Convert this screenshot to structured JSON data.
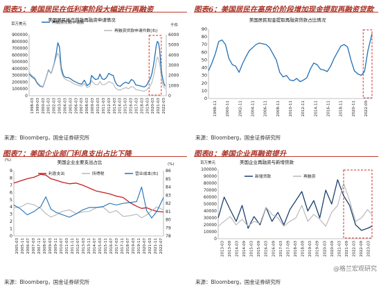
{
  "headers": [
    "图表5：美国居民在低利率阶段大幅进行再融资",
    "图表6：美国居民在高房价阶段增加现金提取再融资贷款",
    "图表7：美国企业部门利息支出占比下降",
    "图表8：美国企业再融资提升"
  ],
  "sources": [
    "来源：Bloomberg，国金证券研究所",
    "来源：Bloomberg，国金证券研究所",
    "来源：Bloomberg，国金证券研究所",
    "来源：Bloomberg，国金证券研究所"
  ],
  "watermark": "@格兰宏观研究",
  "colors": {
    "header": "#a93226",
    "blue": "#1f6fb5",
    "navy": "#1b3f6e",
    "red": "#c41e1e",
    "gray": "#b5b5b5",
    "dashbox": "#d62728"
  },
  "chart_data": [
    {
      "type": "line",
      "title": "美国居民地产贷款再融资申请情况",
      "left_unit": "百万美元",
      "right_unit": "千件",
      "ylim": [
        0,
        900000
      ],
      "y_ticks": [
        0,
        100000,
        200000,
        300000,
        400000,
        500000,
        600000,
        700000,
        800000,
        900000
      ],
      "y2lim": [
        0,
        6000
      ],
      "y2_ticks": [
        0,
        1000,
        2000,
        3000,
        4000,
        5000,
        6000
      ],
      "x_ticks": [
        "1998-03",
        "1999-03",
        "2000-03",
        "2001-03",
        "2002-03",
        "2003-03",
        "2004-03",
        "2005-03",
        "2006-03",
        "2007-03",
        "2008-03",
        "2009-03",
        "2010-03",
        "2011-03",
        "2012-03",
        "2013-03",
        "2014-03",
        "2015-03",
        "2016-03",
        "2017-03",
        "2018-03",
        "2019-03",
        "2020-03",
        "2021-03",
        "2022-03"
      ],
      "x_range": [
        1998.0,
        2022.8
      ],
      "highlight": [
        2019.7,
        2021.9
      ],
      "series": [
        {
          "name": "再融资贷款申请额",
          "axis": "left",
          "color": "#1f6fb5",
          "x": [
            1998.0,
            1998.5,
            1999.0,
            1999.5,
            2000.0,
            2000.5,
            2001.0,
            2001.5,
            2002.0,
            2002.5,
            2002.9,
            2003.2,
            2003.5,
            2003.8,
            2004.2,
            2004.6,
            2005.0,
            2005.5,
            2006.0,
            2006.5,
            2007.0,
            2007.5,
            2008.0,
            2008.5,
            2009.0,
            2009.3,
            2009.6,
            2010.0,
            2010.5,
            2010.8,
            2011.2,
            2011.6,
            2012.0,
            2012.4,
            2012.8,
            2013.2,
            2013.6,
            2014.0,
            2014.5,
            2015.0,
            2015.5,
            2016.0,
            2016.5,
            2016.9,
            2017.3,
            2017.8,
            2018.3,
            2018.8,
            2019.2,
            2019.6,
            2019.9,
            2020.2,
            2020.5,
            2020.8,
            2021.0,
            2021.2,
            2021.4,
            2021.6,
            2021.8,
            2022.0,
            2022.3,
            2022.6
          ],
          "values": [
            320000,
            280000,
            250000,
            180000,
            140000,
            130000,
            250000,
            380000,
            330000,
            460000,
            620000,
            780000,
            720000,
            420000,
            300000,
            270000,
            270000,
            250000,
            220000,
            200000,
            180000,
            170000,
            230000,
            150000,
            180000,
            300000,
            270000,
            240000,
            250000,
            320000,
            250000,
            240000,
            270000,
            330000,
            310000,
            300000,
            200000,
            150000,
            140000,
            180000,
            200000,
            180000,
            240000,
            220000,
            160000,
            150000,
            140000,
            130000,
            150000,
            210000,
            250000,
            320000,
            450000,
            620000,
            740000,
            800000,
            780000,
            680000,
            480000,
            320000,
            200000,
            140000
          ]
        },
        {
          "name": "再融资贷款申请件数(右)",
          "axis": "right",
          "color": "#b5b5b5",
          "x": [
            1998.0,
            1998.5,
            1999.0,
            1999.5,
            2000.0,
            2000.5,
            2001.0,
            2001.5,
            2002.0,
            2002.5,
            2002.9,
            2003.2,
            2003.5,
            2003.8,
            2004.2,
            2004.6,
            2005.0,
            2005.5,
            2006.0,
            2006.5,
            2007.0,
            2007.5,
            2008.0,
            2008.5,
            2009.0,
            2009.3,
            2009.6,
            2010.0,
            2010.5,
            2010.8,
            2011.2,
            2011.6,
            2012.0,
            2012.4,
            2012.8,
            2013.2,
            2013.6,
            2014.0,
            2014.5,
            2015.0,
            2015.5,
            2016.0,
            2016.5,
            2016.9,
            2017.3,
            2017.8,
            2018.3,
            2018.8,
            2019.2,
            2019.6,
            2019.9,
            2020.2,
            2020.5,
            2020.8,
            2021.0,
            2021.2,
            2021.4,
            2021.6,
            2021.8,
            2022.0,
            2022.3,
            2022.6
          ],
          "values": [
            2300,
            2000,
            1800,
            1300,
            1000,
            900,
            1700,
            2600,
            2200,
            3000,
            3800,
            4200,
            3700,
            2400,
            1800,
            1600,
            1500,
            1400,
            1200,
            1100,
            1000,
            950,
            1200,
            800,
            950,
            1500,
            1300,
            1100,
            1100,
            1400,
            1100,
            1100,
            1200,
            1400,
            1300,
            1200,
            800,
            600,
            550,
            700,
            800,
            700,
            900,
            850,
            600,
            550,
            500,
            450,
            550,
            800,
            950,
            1300,
            1900,
            2700,
            3400,
            3800,
            3600,
            3200,
            2300,
            1500,
            900,
            700
          ]
        }
      ]
    },
    {
      "type": "line",
      "title": "美国居民现金提取再融资贷款占比情况",
      "ylim": [
        0,
        90
      ],
      "y_ticks": [
        0,
        10,
        20,
        30,
        40,
        50,
        60,
        70,
        80,
        90
      ],
      "x_ticks": [
        "1998-11",
        "2000-11",
        "2002-11",
        "2004-11",
        "2006-11",
        "2008-11",
        "2010-11",
        "2012-11",
        "2014-11",
        "2016-11",
        "2018-11",
        "2020-11",
        "2022-09"
      ],
      "x_range": [
        1998.8,
        2022.9
      ],
      "highlight": [
        2021.6,
        2022.9
      ],
      "series": [
        {
          "name": "现金提取再融资贷款占比",
          "color": "#1f6fb5",
          "x": [
            1998.8,
            1999.3,
            1999.8,
            2000.3,
            2000.8,
            2001.3,
            2001.8,
            2002.3,
            2002.8,
            2003.3,
            2003.8,
            2004.3,
            2004.8,
            2005.3,
            2005.8,
            2006.3,
            2006.8,
            2007.3,
            2007.8,
            2008.3,
            2008.8,
            2009.3,
            2009.8,
            2010.3,
            2010.8,
            2011.3,
            2011.8,
            2012.3,
            2012.8,
            2013.3,
            2013.8,
            2014.3,
            2014.8,
            2015.3,
            2015.8,
            2016.3,
            2016.8,
            2017.3,
            2017.8,
            2018.3,
            2018.8,
            2019.3,
            2019.8,
            2020.3,
            2020.8,
            2021.3,
            2021.8,
            2022.3,
            2022.9
          ],
          "values": [
            36,
            46,
            58,
            74,
            76,
            70,
            52,
            44,
            42,
            34,
            45,
            54,
            62,
            66,
            70,
            72,
            71,
            70,
            66,
            58,
            50,
            34,
            28,
            30,
            24,
            23,
            26,
            22,
            24,
            27,
            38,
            46,
            44,
            38,
            37,
            35,
            42,
            52,
            60,
            68,
            70,
            67,
            50,
            36,
            32,
            30,
            35,
            62,
            84
          ]
        }
      ]
    },
    {
      "type": "line",
      "title": "美国企业主要支出占比",
      "left_unit": "(%)",
      "right_unit": "(%)",
      "ylim": [
        0,
        9
      ],
      "y_ticks": [
        0,
        1,
        2,
        3,
        4,
        5,
        6,
        7,
        8,
        9
      ],
      "y2lim": [
        78,
        86
      ],
      "y2_ticks": [
        78,
        79,
        80,
        81,
        82,
        83,
        84,
        85,
        86
      ],
      "x_ticks": [
        "2005-03",
        "2005-11",
        "2006-07",
        "2007-03",
        "2007-11",
        "2008-07",
        "2009-03",
        "2009-11",
        "2010-07",
        "2011-03",
        "2011-11",
        "2012-07",
        "2013-03",
        "2013-11",
        "2014-07",
        "2015-03",
        "2015-11",
        "2016-07",
        "2017-03",
        "2017-11",
        "2018-07",
        "2019-03",
        "2019-11",
        "2020-07",
        "2021-03",
        "2021-11",
        "2022-07"
      ],
      "x_range": [
        2005.0,
        2022.8
      ],
      "series": [
        {
          "name": "利息支出",
          "axis": "left",
          "color": "#c41e1e",
          "x": [
            2005.0,
            2005.8,
            2006.6,
            2007.4,
            2008.2,
            2008.8,
            2009.4,
            2010.0,
            2010.8,
            2011.6,
            2012.4,
            2013.2,
            2014.0,
            2014.8,
            2015.6,
            2016.4,
            2017.2,
            2018.0,
            2018.8,
            2019.6,
            2020.2,
            2020.8,
            2021.4,
            2022.0,
            2022.8
          ],
          "values": [
            7.3,
            7.6,
            7.9,
            8.1,
            8.5,
            8.4,
            7.9,
            7.7,
            7.4,
            7.2,
            7.3,
            7.0,
            6.6,
            6.2,
            6.0,
            5.8,
            5.5,
            5.3,
            4.6,
            4.1,
            3.8,
            3.9,
            3.6,
            3.4,
            3.3
          ]
        },
        {
          "name": "所得税",
          "axis": "left",
          "color": "#b5b5b5",
          "x": [
            2005.0,
            2005.8,
            2006.6,
            2007.4,
            2008.2,
            2008.8,
            2009.4,
            2010.0,
            2010.8,
            2011.6,
            2012.4,
            2013.2,
            2014.0,
            2014.8,
            2015.6,
            2016.4,
            2017.2,
            2018.0,
            2018.8,
            2019.6,
            2020.2,
            2020.8,
            2021.4,
            2022.0,
            2022.8
          ],
          "values": [
            3.9,
            4.0,
            4.5,
            4.3,
            3.8,
            3.1,
            2.6,
            2.9,
            3.4,
            3.6,
            3.1,
            3.3,
            3.4,
            3.9,
            4.0,
            3.2,
            3.5,
            2.7,
            2.8,
            3.0,
            2.5,
            2.9,
            3.5,
            4.0,
            3.6
          ]
        },
        {
          "name": "营业成本(右)",
          "axis": "right",
          "color": "#1f6fb5",
          "x": [
            2005.0,
            2005.8,
            2006.6,
            2007.4,
            2008.2,
            2008.8,
            2009.4,
            2010.0,
            2010.8,
            2011.6,
            2012.4,
            2013.2,
            2014.0,
            2014.8,
            2015.6,
            2016.4,
            2017.2,
            2018.0,
            2018.8,
            2019.6,
            2020.2,
            2020.8,
            2021.4,
            2022.0,
            2022.8
          ],
          "values": [
            81.8,
            81.3,
            80.6,
            81.0,
            81.6,
            82.8,
            81.3,
            80.9,
            80.6,
            80.3,
            80.7,
            81.2,
            81.5,
            81.5,
            81.6,
            82.0,
            81.8,
            82.0,
            82.1,
            82.2,
            84.0,
            81.1,
            80.2,
            81.0,
            82.7
          ]
        }
      ]
    },
    {
      "type": "line",
      "title": "美国企业再融资与新增贷款",
      "left_unit": "百万美元",
      "ylim": [
        0,
        100000
      ],
      "y_ticks": [
        0,
        10000,
        20000,
        30000,
        40000,
        50000,
        60000,
        70000,
        80000,
        90000,
        100000
      ],
      "x_ticks": [
        "2013-03",
        "2013-09",
        "2014-03",
        "2014-09",
        "2015-03",
        "2015-09",
        "2016-03",
        "2016-09",
        "2017-03",
        "2017-09",
        "2018-03",
        "2018-09",
        "2019-03",
        "2019-09",
        "2020-03",
        "2020-09",
        "2021-03",
        "2021-09",
        "2022-03",
        "2022-09",
        "2023-03"
      ],
      "x_range": [
        2013.0,
        2023.3
      ],
      "highlight": [
        2021.4,
        2023.3
      ],
      "series": [
        {
          "name": "新增贷款",
          "color": "#1b3f6e",
          "x": [
            2013.0,
            2013.4,
            2013.8,
            2014.2,
            2014.6,
            2015.0,
            2015.4,
            2015.8,
            2016.2,
            2016.6,
            2017.0,
            2017.4,
            2017.8,
            2018.2,
            2018.6,
            2019.0,
            2019.4,
            2019.8,
            2020.2,
            2020.6,
            2021.0,
            2021.4,
            2021.8,
            2022.2,
            2022.6,
            2023.0,
            2023.3
          ],
          "values": [
            30000,
            60000,
            42000,
            25000,
            48000,
            15000,
            32000,
            20000,
            45000,
            25000,
            38000,
            20000,
            42000,
            55000,
            68000,
            40000,
            55000,
            30000,
            70000,
            50000,
            85000,
            62000,
            48000,
            20000,
            12000,
            15000,
            18000
          ]
        },
        {
          "name": "再融资",
          "color": "#b5b5b5",
          "x": [
            2013.0,
            2013.4,
            2013.8,
            2014.2,
            2014.6,
            2015.0,
            2015.4,
            2015.8,
            2016.2,
            2016.6,
            2017.0,
            2017.4,
            2017.8,
            2018.2,
            2018.6,
            2019.0,
            2019.4,
            2019.8,
            2020.2,
            2020.6,
            2021.0,
            2021.4,
            2021.8,
            2022.2,
            2022.6,
            2023.0,
            2023.3
          ],
          "values": [
            18000,
            25000,
            32000,
            20000,
            28000,
            18000,
            25000,
            22000,
            45000,
            35000,
            30000,
            18000,
            25000,
            30000,
            48000,
            25000,
            35000,
            28000,
            18000,
            38000,
            48000,
            80000,
            55000,
            25000,
            30000,
            42000,
            35000
          ]
        }
      ]
    }
  ]
}
